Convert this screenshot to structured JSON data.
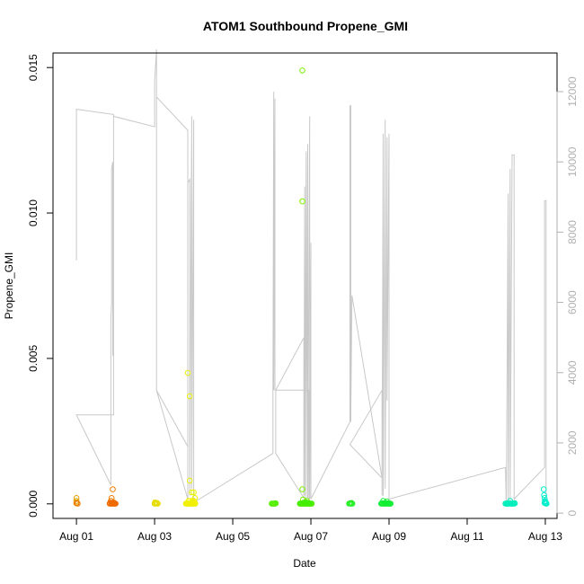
{
  "chart_data": {
    "type": "scatter",
    "title": "ATOM1 Southbound Propene_GMI",
    "xlabel": "Date",
    "ylabel": "Propene_GMI",
    "x_unit": "days since Aug 01 00:00",
    "xlim": [
      -0.6,
      12.3
    ],
    "ylim": [
      -0.0005,
      0.0155
    ],
    "y2lim": [
      -150,
      13100
    ],
    "x_ticks": [
      {
        "value": 0,
        "label": "Aug 01"
      },
      {
        "value": 2,
        "label": "Aug 03"
      },
      {
        "value": 4,
        "label": "Aug 05"
      },
      {
        "value": 6,
        "label": "Aug 07"
      },
      {
        "value": 8,
        "label": "Aug 09"
      },
      {
        "value": 10,
        "label": "Aug 11"
      },
      {
        "value": 12,
        "label": "Aug 13"
      }
    ],
    "y_ticks": [
      {
        "value": 0.0,
        "label": "0.000"
      },
      {
        "value": 0.005,
        "label": "0.005"
      },
      {
        "value": 0.01,
        "label": "0.010"
      },
      {
        "value": 0.015,
        "label": "0.015"
      }
    ],
    "y2_ticks": [
      {
        "value": 0,
        "label": "0"
      },
      {
        "value": 2000,
        "label": "2000"
      },
      {
        "value": 4000,
        "label": "4000"
      },
      {
        "value": 6000,
        "label": "6000"
      },
      {
        "value": 8000,
        "label": "8000"
      },
      {
        "value": 10000,
        "label": "10000"
      },
      {
        "value": 12000,
        "label": "12000"
      }
    ],
    "altitude_line": {
      "color": "#c8c8c8",
      "points": [
        [
          0.0,
          7200
        ],
        [
          0.0,
          11500
        ],
        [
          0.95,
          11350
        ],
        [
          0.95,
          2800
        ],
        [
          0.0,
          2800
        ],
        [
          0.88,
          800
        ],
        [
          0.88,
          5500
        ],
        [
          0.9,
          6000
        ],
        [
          0.9,
          9800
        ],
        [
          0.93,
          10000
        ],
        [
          0.93,
          4500
        ],
        [
          0.95,
          4500
        ],
        [
          0.95,
          11300
        ],
        [
          2.0,
          11000
        ],
        [
          2.0,
          12300
        ],
        [
          2.05,
          13200
        ],
        [
          2.05,
          3500
        ],
        [
          2.05,
          11850
        ],
        [
          2.85,
          10900
        ],
        [
          2.85,
          1900
        ],
        [
          2.05,
          3500
        ],
        [
          2.85,
          400
        ],
        [
          2.85,
          9400
        ],
        [
          2.9,
          9500
        ],
        [
          2.9,
          500
        ],
        [
          2.95,
          11300
        ],
        [
          2.95,
          700
        ],
        [
          3.0,
          11200
        ],
        [
          3.0,
          300
        ],
        [
          5.03,
          1700
        ],
        [
          5.03,
          3500
        ],
        [
          5.05,
          12000
        ],
        [
          5.05,
          3500
        ],
        [
          5.08,
          11800
        ],
        [
          5.08,
          3500
        ],
        [
          5.95,
          3500
        ],
        [
          5.95,
          200
        ],
        [
          5.1,
          1700
        ],
        [
          5.1,
          3500
        ],
        [
          5.82,
          5000
        ],
        [
          5.82,
          400
        ],
        [
          5.84,
          9300
        ],
        [
          5.84,
          500
        ],
        [
          5.88,
          10300
        ],
        [
          5.88,
          400
        ],
        [
          5.92,
          10500
        ],
        [
          5.92,
          400
        ],
        [
          5.97,
          11300
        ],
        [
          5.97,
          400
        ],
        [
          6.0,
          7700
        ],
        [
          6.0,
          400
        ],
        [
          7.0,
          2600
        ],
        [
          7.0,
          11600
        ],
        [
          7.02,
          11600
        ],
        [
          7.02,
          2600
        ],
        [
          7.05,
          6200
        ],
        [
          7.82,
          1000
        ],
        [
          7.0,
          1950
        ],
        [
          7.82,
          3500
        ],
        [
          7.82,
          500
        ],
        [
          7.85,
          10800
        ],
        [
          7.85,
          500
        ],
        [
          7.9,
          11200
        ],
        [
          7.9,
          700
        ],
        [
          7.95,
          10700
        ],
        [
          7.95,
          3200
        ],
        [
          8.0,
          10800
        ],
        [
          8.0,
          3000
        ],
        [
          8.0,
          400
        ],
        [
          10.98,
          1300
        ],
        [
          11.0,
          200
        ],
        [
          11.05,
          9100
        ],
        [
          11.05,
          200
        ],
        [
          11.1,
          9800
        ],
        [
          11.1,
          300
        ],
        [
          11.15,
          10200
        ],
        [
          11.2,
          10200
        ],
        [
          11.2,
          300
        ],
        [
          11.2,
          400
        ],
        [
          11.98,
          1300
        ],
        [
          11.98,
          8900
        ],
        [
          12.02,
          8900
        ],
        [
          12.02,
          400
        ]
      ]
    },
    "scatter_groups": [
      {
        "color": "#e3a100",
        "points": [
          [
            0.0,
            5e-05
          ],
          [
            0.0,
            0.0002
          ],
          [
            0.0,
            0.0001
          ]
        ]
      },
      {
        "color": "#ee7a00",
        "points": [
          [
            0.0,
            2e-05
          ],
          [
            0.03,
            1e-05
          ],
          [
            0.88,
            0.0001
          ],
          [
            0.9,
            0.0002
          ],
          [
            0.93,
            0.0005
          ],
          [
            0.95,
            5e-05
          ],
          [
            0.92,
            2e-05
          ]
        ]
      },
      {
        "color": "#ef6a00",
        "points": [
          [
            0.85,
            1e-05
          ],
          [
            0.87,
            1e-05
          ],
          [
            0.9,
            1e-05
          ],
          [
            0.92,
            1e-05
          ],
          [
            0.94,
            1e-05
          ],
          [
            0.96,
            1e-05
          ],
          [
            0.98,
            1e-05
          ],
          [
            1.0,
            1e-05
          ],
          [
            0.86,
            3e-05
          ],
          [
            0.91,
            4e-05
          ],
          [
            0.97,
            2e-05
          ]
        ]
      },
      {
        "color": "#e6dc00",
        "points": [
          [
            2.0,
            1e-05
          ],
          [
            2.02,
            2e-05
          ],
          [
            2.04,
            1e-05
          ],
          [
            2.06,
            3e-05
          ],
          [
            2.08,
            1e-05
          ],
          [
            2.01,
            5e-05
          ]
        ]
      },
      {
        "color": "#f0f000",
        "points": [
          [
            2.8,
            1e-05
          ],
          [
            2.82,
            1e-05
          ],
          [
            2.84,
            1e-05
          ],
          [
            2.86,
            1e-05
          ],
          [
            2.88,
            1e-05
          ],
          [
            2.9,
            1e-05
          ],
          [
            2.92,
            1e-05
          ],
          [
            2.94,
            2e-05
          ],
          [
            2.96,
            1e-05
          ],
          [
            2.98,
            1e-05
          ],
          [
            3.0,
            1e-05
          ],
          [
            3.02,
            1e-05
          ],
          [
            3.04,
            1e-05
          ],
          [
            2.87,
            0.0001
          ],
          [
            2.91,
            0.0001
          ],
          [
            2.97,
            0.0001
          ],
          [
            3.03,
            0.0002
          ],
          [
            3.0,
            0.0001
          ]
        ]
      },
      {
        "color": "#e6f000",
        "points": [
          [
            2.85,
            0.0045
          ],
          [
            2.9,
            0.0037
          ],
          [
            2.9,
            0.0008
          ],
          [
            2.95,
            0.0004
          ],
          [
            3.0,
            0.0004
          ]
        ]
      },
      {
        "color": "#55ee00",
        "points": [
          [
            5.0,
            1e-05
          ],
          [
            5.02,
            1e-05
          ],
          [
            5.04,
            1e-05
          ],
          [
            5.06,
            1e-05
          ],
          [
            5.08,
            1e-05
          ],
          [
            5.1,
            2e-05
          ]
        ]
      },
      {
        "color": "#7af000",
        "points": [
          [
            5.78,
            0.0149
          ],
          [
            5.78,
            0.0104
          ],
          [
            5.78,
            0.0005
          ],
          [
            5.8,
            0.00015
          ],
          [
            5.85,
            5e-05
          ],
          [
            5.9,
            0.0001
          ],
          [
            5.95,
            2e-05
          ],
          [
            6.0,
            1e-05
          ]
        ]
      },
      {
        "color": "#44ee00",
        "points": [
          [
            5.72,
            1e-05
          ],
          [
            5.74,
            1e-05
          ],
          [
            5.76,
            1e-05
          ],
          [
            5.78,
            1e-05
          ],
          [
            5.8,
            1e-05
          ],
          [
            5.82,
            1e-05
          ],
          [
            5.84,
            1e-05
          ],
          [
            5.86,
            1e-05
          ],
          [
            5.88,
            1e-05
          ],
          [
            5.9,
            1e-05
          ],
          [
            5.92,
            1e-05
          ],
          [
            5.94,
            1e-05
          ],
          [
            5.96,
            1e-05
          ],
          [
            5.98,
            1e-05
          ],
          [
            6.02,
            1e-05
          ],
          [
            5.81,
            4e-05
          ],
          [
            5.87,
            6e-05
          ],
          [
            5.93,
            3e-05
          ]
        ]
      },
      {
        "color": "#22ee22",
        "points": [
          [
            6.98,
            1e-05
          ],
          [
            7.0,
            2e-05
          ],
          [
            7.02,
            1e-05
          ],
          [
            7.04,
            3e-05
          ],
          [
            7.06,
            1e-05
          ]
        ]
      },
      {
        "color": "#11ee33",
        "points": [
          [
            7.8,
            1e-05
          ],
          [
            7.82,
            1e-05
          ],
          [
            7.84,
            2e-05
          ],
          [
            7.86,
            1e-05
          ],
          [
            7.88,
            1e-05
          ],
          [
            7.9,
            3e-05
          ],
          [
            7.92,
            1e-05
          ],
          [
            7.94,
            1e-05
          ],
          [
            7.96,
            2e-05
          ],
          [
            7.98,
            1e-05
          ],
          [
            8.0,
            1e-05
          ],
          [
            8.02,
            1e-05
          ],
          [
            8.04,
            1e-05
          ],
          [
            7.85,
            0.0001
          ],
          [
            7.95,
            8e-05
          ]
        ]
      },
      {
        "color": "#00eebb",
        "points": [
          [
            10.98,
            1e-05
          ],
          [
            11.0,
            1e-05
          ],
          [
            11.02,
            1e-05
          ],
          [
            11.04,
            1e-05
          ],
          [
            11.06,
            1e-05
          ],
          [
            11.08,
            2e-05
          ],
          [
            11.1,
            1e-05
          ],
          [
            11.12,
            1e-05
          ],
          [
            11.14,
            1e-05
          ],
          [
            11.16,
            1e-05
          ],
          [
            11.18,
            1e-05
          ],
          [
            11.2,
            1e-05
          ],
          [
            11.22,
            2e-05
          ],
          [
            11.1,
            0.0001
          ]
        ]
      },
      {
        "color": "#00eecc",
        "points": [
          [
            11.96,
            0.0005
          ],
          [
            11.97,
            0.0003
          ],
          [
            11.98,
            0.0002
          ],
          [
            11.99,
            0.0001
          ],
          [
            12.0,
            5e-05
          ],
          [
            12.01,
            2e-05
          ],
          [
            12.02,
            1e-05
          ],
          [
            12.03,
            1e-05
          ],
          [
            12.0,
            8e-05
          ],
          [
            11.98,
            3e-05
          ]
        ]
      }
    ]
  }
}
